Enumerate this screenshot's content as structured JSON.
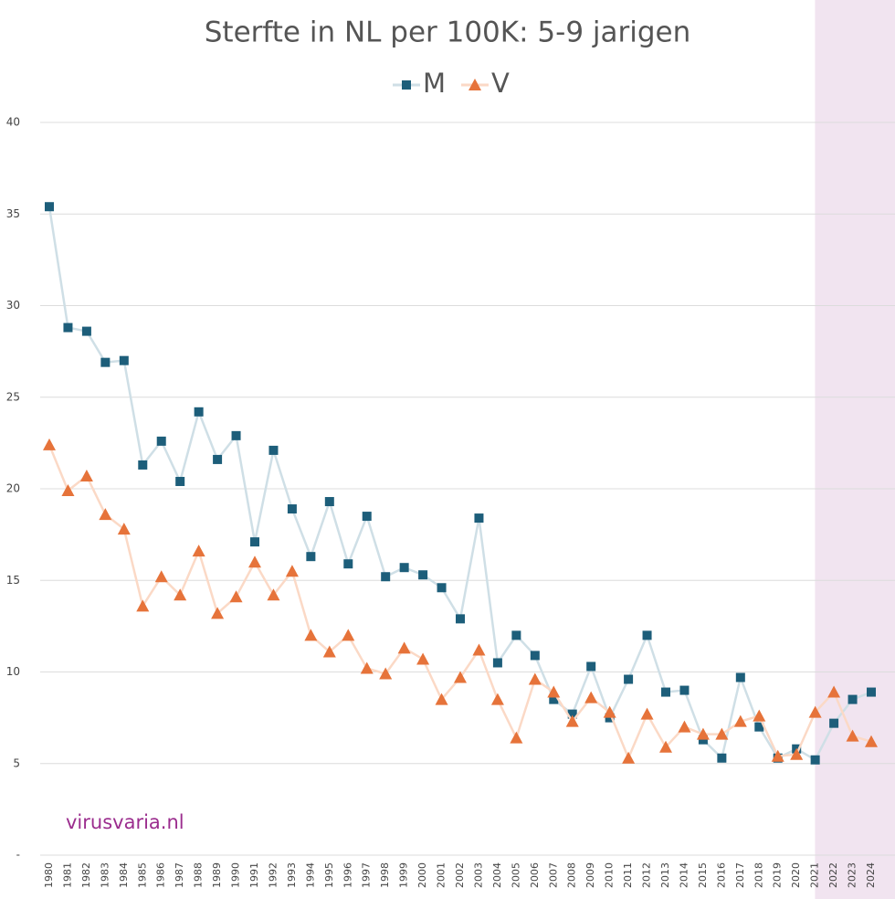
{
  "chart_data": {
    "type": "line",
    "title": "Sterfte in NL per 100K: 5-9 jarigen",
    "x": [
      1980,
      1981,
      1982,
      1983,
      1984,
      1985,
      1986,
      1987,
      1988,
      1989,
      1990,
      1991,
      1992,
      1993,
      1994,
      1995,
      1996,
      1997,
      1998,
      1999,
      2000,
      2001,
      2002,
      2003,
      2004,
      2005,
      2006,
      2007,
      2008,
      2009,
      2010,
      2011,
      2012,
      2013,
      2014,
      2015,
      2016,
      2017,
      2018,
      2019,
      2020,
      2021,
      2022,
      2023,
      2024
    ],
    "xlim": [
      1980,
      2024
    ],
    "series": [
      {
        "name": "M",
        "color": "#1d5e7a",
        "line_color": "#cfdfe6",
        "marker": "square",
        "values": [
          35.4,
          28.8,
          28.6,
          26.9,
          27.0,
          21.3,
          22.6,
          20.4,
          24.2,
          21.6,
          22.9,
          17.1,
          22.1,
          18.9,
          16.3,
          19.3,
          15.9,
          18.5,
          15.2,
          15.7,
          15.3,
          14.6,
          12.9,
          18.4,
          10.5,
          12.0,
          10.9,
          8.5,
          7.7,
          10.3,
          7.5,
          9.6,
          12.0,
          8.9,
          9.0,
          6.3,
          5.3,
          9.7,
          7.0,
          5.3,
          5.8,
          5.2,
          7.2,
          8.5,
          8.9
        ]
      },
      {
        "name": "V",
        "color": "#e6733a",
        "line_color": "#fbd9c6",
        "marker": "triangle",
        "values": [
          22.4,
          19.9,
          20.7,
          18.6,
          17.8,
          13.6,
          15.2,
          14.2,
          16.6,
          13.2,
          14.1,
          16.0,
          14.2,
          15.5,
          12.0,
          11.1,
          12.0,
          10.2,
          9.9,
          11.3,
          10.7,
          8.5,
          9.7,
          11.2,
          8.5,
          6.4,
          9.6,
          8.9,
          7.3,
          8.6,
          7.8,
          5.3,
          7.7,
          5.9,
          7.0,
          6.6,
          6.6,
          7.3,
          7.6,
          5.4,
          5.5,
          7.8,
          8.9,
          6.5,
          6.2
        ]
      }
    ],
    "ylim": [
      0,
      40
    ],
    "yticks": [
      {
        "value": 0,
        "label": "-"
      },
      5,
      10,
      15,
      20,
      25,
      30,
      35,
      40
    ],
    "grid": true,
    "shaded_x": [
      2021,
      2024
    ],
    "shade_color": "#f1e4f0",
    "annotation": "virusvaria.nl",
    "annotation_color": "#9b2d8e",
    "legend": "top"
  }
}
